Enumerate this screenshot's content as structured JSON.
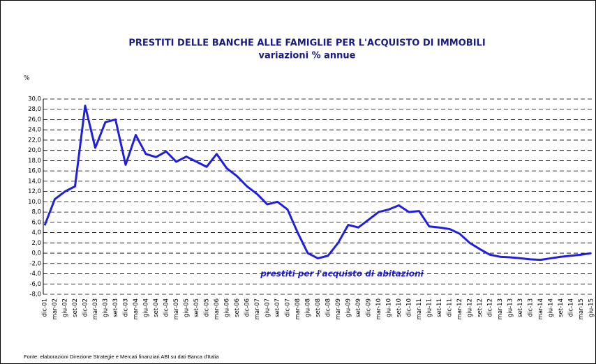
{
  "chart_data": {
    "type": "line",
    "title": "PRESTITI DELLE BANCHE ALLE FAMIGLIE PER L'ACQUISTO DI IMMOBILI",
    "subtitle": "variazioni % annue",
    "y_label": "%",
    "annotation": "prestiti per l'acquisto di abitazioni",
    "source": "Fonte: elaborazioni  Direzione Strategie e Mercati finanziari ABI su dati Banca d'Italia",
    "categories": [
      "dic-01",
      "mar-02",
      "giu-02",
      "set-02",
      "dic-02",
      "mar-03",
      "giu-03",
      "set-03",
      "dic-03",
      "mar-04",
      "giu-04",
      "set-04",
      "dic-04",
      "mar-05",
      "giu-05",
      "set-05",
      "dic-05",
      "mar-06",
      "giu-06",
      "set-06",
      "dic-06",
      "mar-07",
      "giu-07",
      "set-07",
      "dic-07",
      "mar-08",
      "giu-08",
      "set-08",
      "dic-08",
      "mar-09",
      "giu-09",
      "set-09",
      "dic-09",
      "mar-10",
      "giu-10",
      "set-10",
      "dic-10",
      "mar-11",
      "giu-11",
      "set-11",
      "dic-11",
      "mar-12",
      "giu-12",
      "set-12",
      "dic-12",
      "mar-13",
      "giu-13",
      "set-13",
      "dic-13",
      "mar-14",
      "giu-14",
      "set-14",
      "dic-14",
      "mar-15",
      "giu-15"
    ],
    "series": [
      {
        "name": "prestiti per l'acquisto di abitazioni",
        "color": "#1f1fe0",
        "values": [
          5.4,
          10.5,
          12.0,
          13.0,
          28.7,
          20.5,
          25.5,
          26.0,
          17.2,
          23.0,
          19.3,
          18.7,
          19.8,
          17.8,
          18.8,
          17.8,
          16.8,
          19.3,
          16.5,
          15.0,
          13.0,
          11.5,
          9.5,
          10.0,
          8.5,
          4.0,
          0.0,
          -1.0,
          -0.5,
          2.0,
          5.5,
          5.0,
          6.5,
          8.0,
          8.5,
          9.3,
          8.0,
          8.2,
          5.2,
          5.0,
          4.7,
          3.8,
          2.0,
          0.8,
          -0.3,
          -0.7,
          -0.8,
          -1.0,
          -1.2,
          -1.3,
          -1.0,
          -0.7,
          -0.5,
          -0.3,
          0.0
        ]
      }
    ],
    "ylim": [
      -8,
      30
    ],
    "yticks": [
      {
        "value": -8,
        "label": "-8,0"
      },
      {
        "value": -6,
        "label": "-6,0"
      },
      {
        "value": -4,
        "label": "-4,0"
      },
      {
        "value": -2,
        "label": "-2,0"
      },
      {
        "value": 0,
        "label": "0,0"
      },
      {
        "value": 2,
        "label": "2,0"
      },
      {
        "value": 4,
        "label": "4,0"
      },
      {
        "value": 6,
        "label": "6,0"
      },
      {
        "value": 8,
        "label": "8,0"
      },
      {
        "value": 10,
        "label": "10,0"
      },
      {
        "value": 12,
        "label": "12,0"
      },
      {
        "value": 14,
        "label": "14,0"
      },
      {
        "value": 16,
        "label": "16,0"
      },
      {
        "value": 18,
        "label": "18,0"
      },
      {
        "value": 20,
        "label": "20,0"
      },
      {
        "value": 22,
        "label": "22,0"
      },
      {
        "value": 24,
        "label": "24,0"
      },
      {
        "value": 26,
        "label": "26,0"
      },
      {
        "value": 28,
        "label": "28,0"
      },
      {
        "value": 30,
        "label": "30,0"
      }
    ],
    "grid": true
  }
}
